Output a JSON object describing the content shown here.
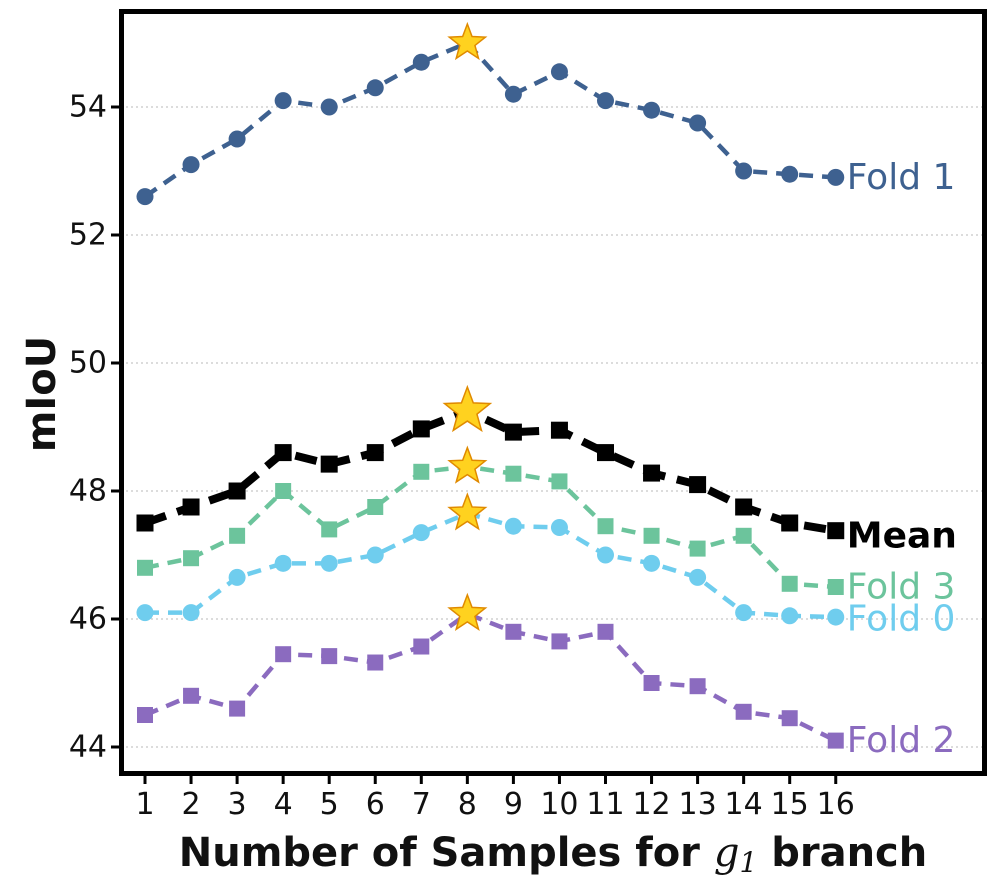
{
  "chart_data": {
    "type": "line",
    "title": "",
    "xlabel_prefix": "Number of Samples for",
    "xlabel_var": "g",
    "xlabel_sub": "1",
    "xlabel_suffix": "branch",
    "ylabel": "mIoU",
    "x": [
      1,
      2,
      3,
      4,
      5,
      6,
      7,
      8,
      9,
      10,
      11,
      12,
      13,
      14,
      15,
      16
    ],
    "x_ticks": [
      "1",
      "2",
      "3",
      "4",
      "5",
      "6",
      "7",
      "8",
      "9",
      "10",
      "11",
      "12",
      "13",
      "14",
      "15",
      "16"
    ],
    "y_ticks": [
      44,
      46,
      48,
      50,
      52,
      54
    ],
    "ylim": [
      43.6,
      55.6
    ],
    "grid": "horizontal-dotted",
    "highlight_x": 8,
    "highlight_marker": "star",
    "highlight_color": "#ffd21f",
    "series": [
      {
        "name": "Fold 1",
        "label": "Fold 1",
        "color": "#3e6190",
        "marker": "circle",
        "bold": false,
        "values": [
          52.6,
          53.1,
          53.5,
          54.1,
          54.0,
          54.3,
          54.7,
          55.0,
          54.2,
          54.55,
          54.1,
          53.95,
          53.75,
          53.0,
          52.95,
          52.9
        ]
      },
      {
        "name": "Mean",
        "label": "Mean",
        "color": "#000000",
        "marker": "square",
        "bold": true,
        "values": [
          47.5,
          47.75,
          48.0,
          48.6,
          48.42,
          48.6,
          48.97,
          49.25,
          48.92,
          48.95,
          48.6,
          48.28,
          48.1,
          47.75,
          47.5,
          47.38
        ]
      },
      {
        "name": "Fold 3",
        "label": "Fold 3",
        "color": "#6cc49c",
        "marker": "square",
        "bold": false,
        "values": [
          46.8,
          46.95,
          47.3,
          48.0,
          47.4,
          47.75,
          48.3,
          48.38,
          48.27,
          48.15,
          47.45,
          47.3,
          47.1,
          47.3,
          46.55,
          46.5
        ]
      },
      {
        "name": "Fold 0",
        "label": "Fold 0",
        "color": "#6fcdee",
        "marker": "circle",
        "bold": false,
        "values": [
          46.1,
          46.1,
          46.65,
          46.87,
          46.87,
          47.0,
          47.35,
          47.65,
          47.45,
          47.43,
          47.0,
          46.87,
          46.65,
          46.1,
          46.05,
          46.03
        ]
      },
      {
        "name": "Fold 2",
        "label": "Fold 2",
        "color": "#8b6bbf",
        "marker": "square",
        "bold": false,
        "values": [
          44.5,
          44.8,
          44.6,
          45.45,
          45.42,
          45.32,
          45.57,
          46.08,
          45.8,
          45.65,
          45.8,
          45.0,
          44.95,
          44.55,
          44.45,
          44.1
        ]
      }
    ],
    "series_label_ys": [
      52.9,
      47.3,
      46.5,
      46.0,
      44.1
    ]
  }
}
